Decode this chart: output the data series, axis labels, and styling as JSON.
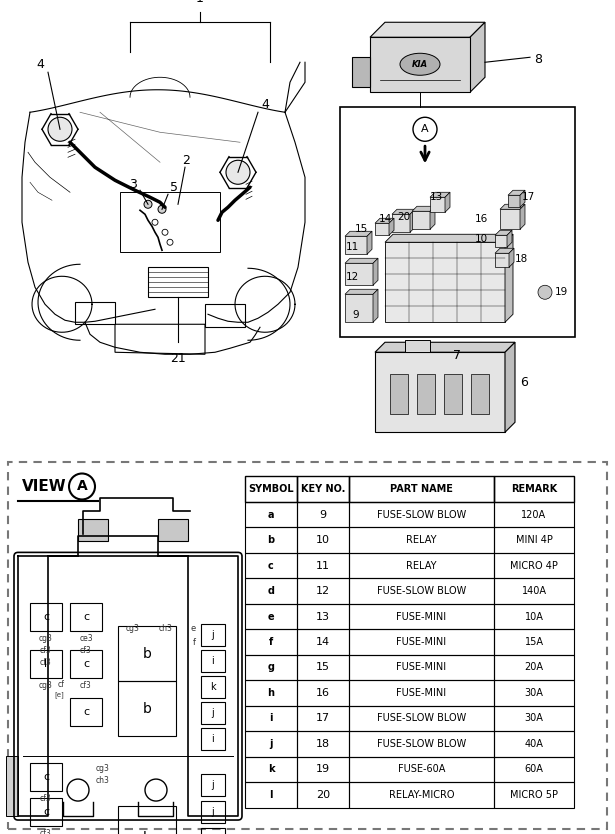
{
  "bg_color": "#ffffff",
  "table_headers": [
    "SYMBOL",
    "KEY NO.",
    "PART NAME",
    "REMARK"
  ],
  "table_rows": [
    [
      "a",
      "9",
      "FUSE-SLOW BLOW",
      "120A"
    ],
    [
      "b",
      "10",
      "RELAY",
      "MINI 4P"
    ],
    [
      "c",
      "11",
      "RELAY",
      "MICRO 4P"
    ],
    [
      "d",
      "12",
      "FUSE-SLOW BLOW",
      "140A"
    ],
    [
      "e",
      "13",
      "FUSE-MINI",
      "10A"
    ],
    [
      "f",
      "14",
      "FUSE-MINI",
      "15A"
    ],
    [
      "g",
      "15",
      "FUSE-MINI",
      "20A"
    ],
    [
      "h",
      "16",
      "FUSE-MINI",
      "30A"
    ],
    [
      "i",
      "17",
      "FUSE-SLOW BLOW",
      "30A"
    ],
    [
      "j",
      "18",
      "FUSE-SLOW BLOW",
      "40A"
    ],
    [
      "k",
      "19",
      "FUSE-60A",
      "60A"
    ],
    [
      "l",
      "20",
      "RELAY-MICRO",
      "MICRO 5P"
    ]
  ]
}
